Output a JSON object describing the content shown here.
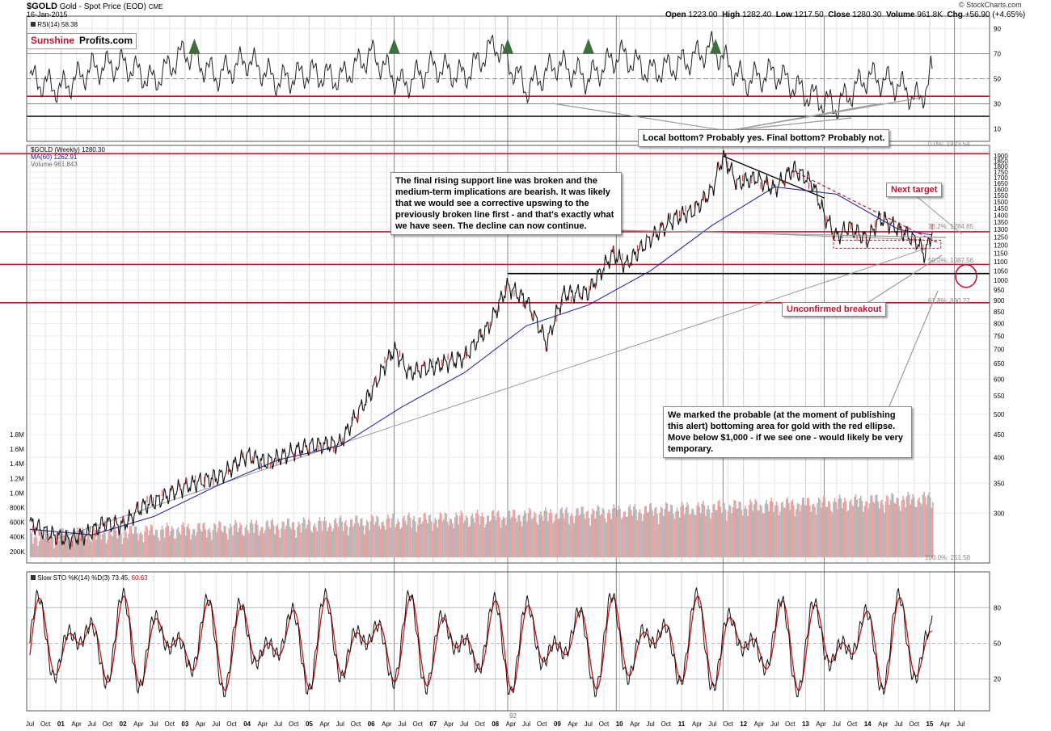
{
  "header": {
    "symbol": "$GOLD",
    "description": "Gold - Spot Price (EOD)",
    "exchange": "CME",
    "date": "16-Jan-2015",
    "open_label": "Open",
    "open": "1223.00",
    "high_label": "High",
    "high": "1282.40",
    "low_label": "Low",
    "low": "1217.50",
    "close_label": "Close",
    "close": "1280.30",
    "volume_label": "Volume",
    "volume": "961.8K",
    "chg_label": "Chg",
    "chg": "+56.90 (+4.65%)",
    "source": "© StockCharts.com"
  },
  "logo": {
    "part1": "Sunshine",
    "part2": "Profits.com"
  },
  "colors": {
    "accent_red": "#c8102e",
    "ma_blue": "#1a1aa0",
    "stoch_red": "#e00000",
    "rsi_fill": "#3e6e3e"
  },
  "chart_data": [
    {
      "type": "line",
      "panel": "rsi",
      "legend": "RSI(14) 58.38",
      "ylim": [
        0,
        100
      ],
      "y_ticks": [
        "90",
        "70",
        "50",
        "30",
        "10"
      ],
      "x": [
        2000.5,
        2001.0,
        2001.5,
        2002.0,
        2002.5,
        2003.0,
        2003.5,
        2004.0,
        2004.5,
        2005.0,
        2005.5,
        2006.0,
        2006.5,
        2007.0,
        2007.5,
        2008.0,
        2008.5,
        2009.0,
        2009.5,
        2010.0,
        2010.5,
        2011.0,
        2011.5,
        2012.0,
        2012.5,
        2013.0,
        2013.5,
        2014.0,
        2014.5,
        2014.85,
        2015.04
      ],
      "values": [
        50,
        42,
        58,
        62,
        48,
        72,
        52,
        65,
        48,
        55,
        50,
        70,
        45,
        60,
        52,
        78,
        42,
        62,
        50,
        70,
        55,
        62,
        75,
        48,
        55,
        38,
        28,
        52,
        45,
        32,
        58
      ],
      "reference_lines": [
        {
          "y": 70,
          "style": "gray"
        },
        {
          "y": 50,
          "style": "dashed"
        },
        {
          "y": 30,
          "style": "gray"
        },
        {
          "y": 36,
          "style": "red"
        },
        {
          "y": 20,
          "style": "black"
        }
      ],
      "annotation": "Local bottom? Probably yes. Final bottom? Probably not."
    },
    {
      "type": "line",
      "panel": "price",
      "legend": [
        "$GOLD (Weekly) 1280.30",
        "MA(60) 1262.91",
        "Volume 961,843"
      ],
      "scale": "log",
      "ylim": [
        250,
        1950
      ],
      "y_ticks": [
        "1900",
        "1850",
        "1800",
        "1750",
        "1700",
        "1650",
        "1600",
        "1550",
        "1500",
        "1450",
        "1400",
        "1350",
        "1300",
        "1250",
        "1200",
        "1150",
        "1100",
        "1050",
        "1000",
        "950",
        "900",
        "850",
        "800",
        "750",
        "700",
        "650",
        "600",
        "550",
        "500",
        "450",
        "400",
        "350",
        "300"
      ],
      "series": [
        {
          "x": [
            2000.5,
            2000.8,
            2001.1,
            2001.4,
            2001.7,
            2002.0,
            2002.3,
            2002.6,
            2002.9,
            2003.2,
            2003.6,
            2004.0,
            2004.3,
            2004.7,
            2005.0,
            2005.5,
            2006.0,
            2006.37,
            2006.6,
            2007.0,
            2007.5,
            2007.9,
            2008.2,
            2008.5,
            2008.83,
            2009.1,
            2009.5,
            2009.9,
            2010.1,
            2010.5,
            2010.9,
            2011.2,
            2011.5,
            2011.67,
            2011.9,
            2012.2,
            2012.5,
            2012.8,
            2013.1,
            2013.3,
            2013.5,
            2013.7,
            2014.0,
            2014.2,
            2014.5,
            2014.8,
            2014.92,
            2015.04
          ],
          "values": [
            285,
            270,
            262,
            268,
            285,
            282,
            310,
            322,
            340,
            352,
            365,
            405,
            390,
            410,
            425,
            430,
            560,
            700,
            620,
            640,
            670,
            790,
            970,
            900,
            720,
            930,
            940,
            1150,
            1080,
            1240,
            1380,
            1430,
            1600,
            1900,
            1650,
            1700,
            1600,
            1780,
            1660,
            1400,
            1250,
            1320,
            1230,
            1380,
            1300,
            1220,
            1140,
            1280.3
          ]
        },
        {
          "name": "MA(60)",
          "x": [
            2000.5,
            2001.5,
            2002.5,
            2003.5,
            2004.5,
            2005.5,
            2006.5,
            2007.5,
            2008.5,
            2009.5,
            2010.5,
            2011.5,
            2012.5,
            2013.5,
            2014.5,
            2015.04
          ],
          "values": [
            276,
            268,
            295,
            345,
            395,
            425,
            520,
            620,
            790,
            880,
            1050,
            1330,
            1620,
            1560,
            1300,
            1262.91
          ]
        }
      ],
      "horizontal_lines": [
        1923.54,
        1284.85,
        1085,
        1035,
        890.27
      ],
      "fib_labels": [
        "0.0%: 1923.54",
        "38.2%: 1284.85",
        "50.0%: 1087.56",
        "61.8%: 890.27",
        "100.0%: 251.58"
      ],
      "volume_ticks": [
        "1.8M",
        "1.6M",
        "1.4M",
        "1.2M",
        "1.0M",
        "800K",
        "600K",
        "400K",
        "200K"
      ],
      "annotations": [
        "The final rising support line was broken and the medium-term implications are bearish. It was likely that we would see a corrective upswing to the previously broken line first - and that's exactly what we have seen. The decline can now continue.",
        "Next target",
        "Unconfirmed breakout",
        "We marked the probable (at the moment of publishing this alert) bottoming area for gold with the red ellipse. Move below $1,000 - if we see one - would likely be very temporary."
      ]
    },
    {
      "type": "line",
      "panel": "stochastic",
      "legend": "Slow STO %K(14) %D(3) 73.45,",
      "legend_d": "60.63",
      "ylim": [
        0,
        100
      ],
      "y_ticks": [
        "80",
        "50",
        "20"
      ],
      "values_k_last": 73.45,
      "values_d_last": 60.63
    }
  ],
  "x_axis": {
    "labels": [
      "Jul",
      "Oct",
      "01",
      "Apr",
      "Jul",
      "Oct",
      "02",
      "Apr",
      "Jul",
      "Oct",
      "03",
      "Apr",
      "Jul",
      "Oct",
      "04",
      "Apr",
      "Jul",
      "Oct",
      "05",
      "Apr",
      "Jul",
      "Oct",
      "06",
      "Apr",
      "Jul",
      "Oct",
      "07",
      "Apr",
      "Jul",
      "Oct",
      "08",
      "Apr",
      "Jul",
      "Oct",
      "09",
      "Apr",
      "Jul",
      "Oct",
      "10",
      "Apr",
      "Jul",
      "Oct",
      "11",
      "Apr",
      "Jul",
      "Oct",
      "12",
      "Apr",
      "Jul",
      "Oct",
      "13",
      "Apr",
      "Jul",
      "Oct",
      "14",
      "Apr",
      "Jul",
      "Oct",
      "15",
      "Apr",
      "Jul"
    ],
    "bold_labels": [
      "01",
      "02",
      "03",
      "04",
      "05",
      "06",
      "07",
      "08",
      "09",
      "10",
      "11",
      "12",
      "13",
      "14",
      "15"
    ]
  },
  "marker_92": "92"
}
